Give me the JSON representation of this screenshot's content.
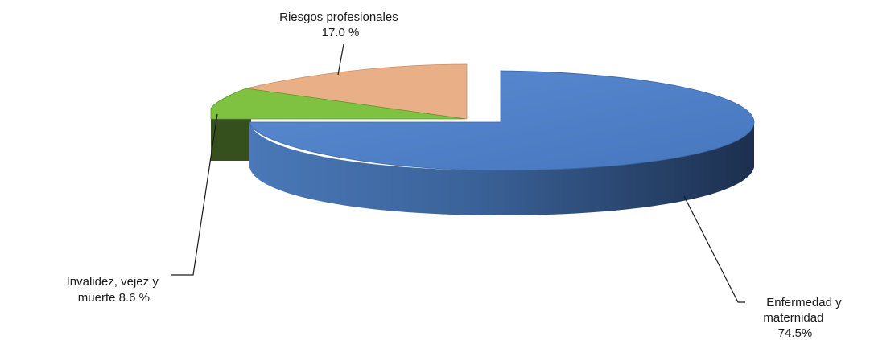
{
  "chart_data": {
    "type": "pie",
    "style": "3d-exploded",
    "slices": [
      {
        "name": "Enfermedad y maternidad",
        "value": 74.5,
        "label_lines": [
          "Enfermedad y",
          "maternidad",
          "74.5%"
        ],
        "color": "#4F81C7",
        "side_color": "#1F3456"
      },
      {
        "name": "Invalidez, vejez y muerte",
        "value": 8.6,
        "label_lines": [
          "Invalidez, vejez y",
          "muerte 8.6 %"
        ],
        "color": "#7FC241",
        "side_color": "#3A5520"
      },
      {
        "name": "Riesgos profesionales",
        "value": 17.0,
        "label_lines": [
          "Riesgos profesionales",
          "17.0 %"
        ],
        "color": "#E9AF86",
        "side_color": "#8A5A3A"
      }
    ],
    "legend": "none"
  }
}
